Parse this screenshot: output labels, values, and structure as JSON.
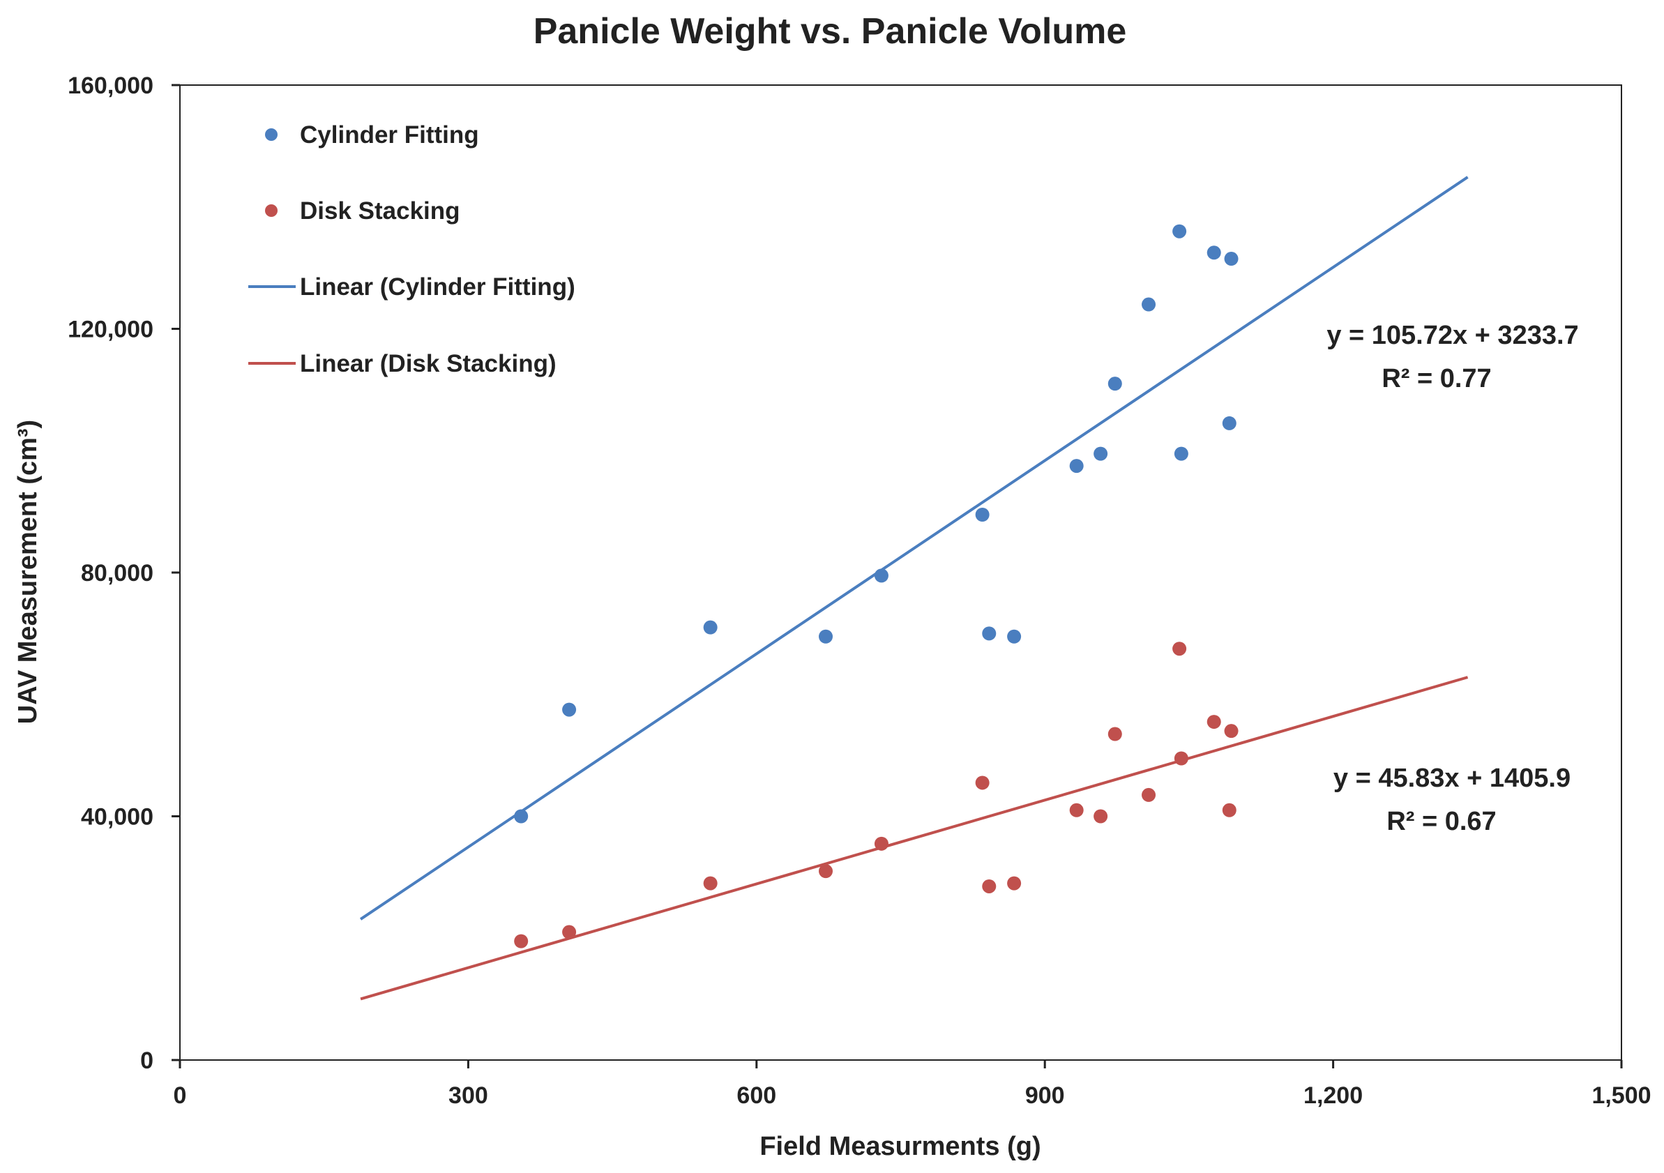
{
  "chart_data": {
    "type": "scatter",
    "title": "Panicle Weight vs. Panicle Volume",
    "xlabel": "Field Measurments (g)",
    "ylabel": "UAV Measurement (cm³)",
    "xlim": [
      0,
      1500
    ],
    "ylim": [
      0,
      160000
    ],
    "xticks": [
      0,
      300,
      600,
      900,
      1200,
      1500
    ],
    "yticks": [
      0,
      40000,
      80000,
      120000,
      160000
    ],
    "xtick_labels": [
      "0",
      "300",
      "600",
      "900",
      "1,200",
      "1,500"
    ],
    "ytick_labels": [
      "0",
      "40,000",
      "80,000",
      "120,000",
      "160,000"
    ],
    "legend_position": "top-left",
    "series": [
      {
        "name": "Cylinder Fitting",
        "kind": "points",
        "color": "#4a7ebf",
        "points": [
          [
            355,
            40000
          ],
          [
            405,
            57500
          ],
          [
            552,
            71000
          ],
          [
            672,
            69500
          ],
          [
            730,
            79500
          ],
          [
            835,
            89500
          ],
          [
            842,
            70000
          ],
          [
            868,
            69500
          ],
          [
            933,
            97500
          ],
          [
            958,
            99500
          ],
          [
            973,
            111000
          ],
          [
            1008,
            124000
          ],
          [
            1040,
            136000
          ],
          [
            1042,
            99500
          ],
          [
            1076,
            132500
          ],
          [
            1092,
            104500
          ],
          [
            1094,
            131500
          ]
        ]
      },
      {
        "name": "Disk Stacking",
        "kind": "points",
        "color": "#c0504d",
        "points": [
          [
            355,
            19500
          ],
          [
            405,
            21000
          ],
          [
            552,
            29000
          ],
          [
            672,
            31000
          ],
          [
            730,
            35500
          ],
          [
            835,
            45500
          ],
          [
            842,
            28500
          ],
          [
            868,
            29000
          ],
          [
            933,
            41000
          ],
          [
            958,
            40000
          ],
          [
            973,
            53500
          ],
          [
            1008,
            43500
          ],
          [
            1040,
            67500
          ],
          [
            1042,
            49500
          ],
          [
            1076,
            55500
          ],
          [
            1092,
            41000
          ],
          [
            1094,
            54000
          ]
        ]
      },
      {
        "name": "Linear (Cylinder Fitting)",
        "kind": "trendline",
        "color": "#4a7ebf",
        "slope": 105.72,
        "intercept": 3233.7,
        "x_range": [
          188,
          1340
        ]
      },
      {
        "name": "Linear (Disk Stacking)",
        "kind": "trendline",
        "color": "#c0504d",
        "slope": 45.83,
        "intercept": 1405.9,
        "x_range": [
          188,
          1340
        ]
      }
    ],
    "annotations": [
      {
        "id": "cyl",
        "line1": "y = 105.72x + 3233.7",
        "line2": "R² = 0.77"
      },
      {
        "id": "disk",
        "line1": "y = 45.83x + 1405.9",
        "line2": "R² = 0.67"
      }
    ]
  }
}
